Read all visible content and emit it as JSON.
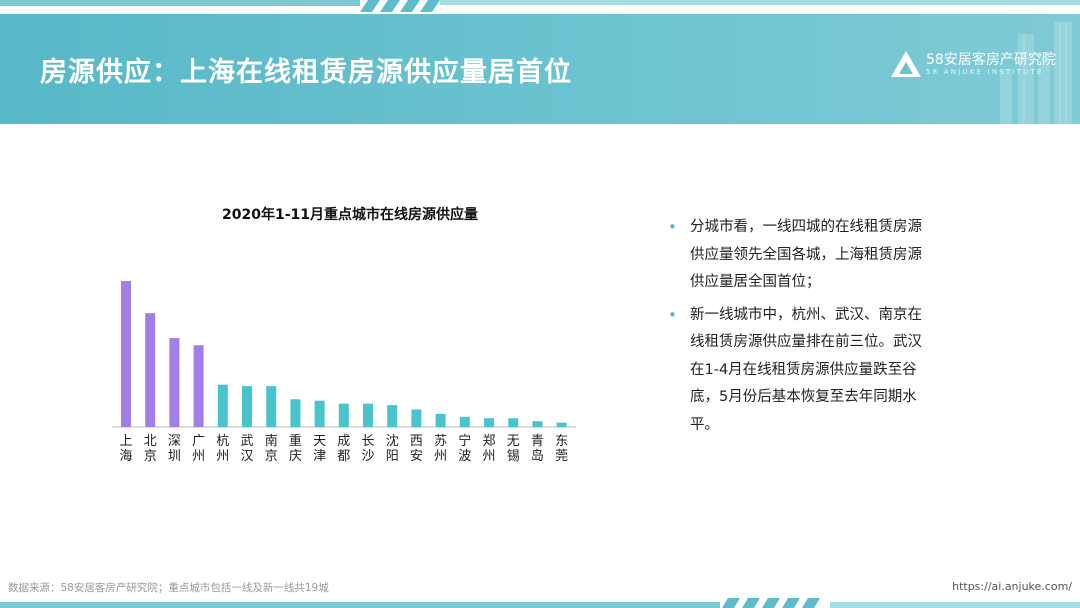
{
  "header": {
    "title": "房源供应：上海在线租赁房源供应量居首位",
    "logo_name": "58安居客房产研究院",
    "logo_sub": "58 ANJUKE INSTITUTE"
  },
  "chart_data": {
    "type": "bar",
    "title": "2020年1-11月重点城市在线房源供应量",
    "categories": [
      "上海",
      "北京",
      "深圳",
      "广州",
      "杭州",
      "武汉",
      "南京",
      "重庆",
      "天津",
      "成都",
      "长沙",
      "沈阳",
      "西安",
      "苏州",
      "宁波",
      "郑州",
      "无锡",
      "青岛",
      "东莞"
    ],
    "values": [
      100,
      78,
      61,
      56,
      29,
      28,
      28,
      19,
      18,
      16,
      16,
      15,
      12,
      9,
      7,
      6,
      6,
      4,
      3
    ],
    "ylim": [
      0,
      100
    ],
    "colors": {
      "first_tier": "#a27ee9",
      "new_first_tier": "#49c4cf",
      "axis": "#bbbbbb"
    },
    "first_tier_count": 4,
    "grid": false
  },
  "bullets": [
    "分城市看，一线四城的在线租赁房源供应量领先全国各城，上海租赁房源供应量居全国首位；",
    "新一线城市中，杭州、武汉、南京在线租赁房源供应量排在前三位。武汉在1-4月在线租赁房源供应量跌至谷底，5月份后基本恢复至去年同期水平。"
  ],
  "bullet_icon": "•",
  "footer": {
    "source": "数据来源：58安居客房产研究院；重点城市包括一线及新一线共19城",
    "url": "https://ai.anjuke.com/"
  }
}
